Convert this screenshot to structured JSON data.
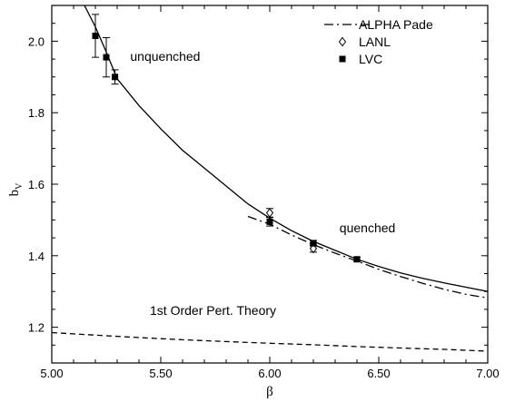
{
  "chart_data": {
    "type": "scatter",
    "title": "",
    "xlabel": "β",
    "ylabel": "b",
    "ylabel_subscript": "V",
    "xlim": [
      5.0,
      7.0
    ],
    "ylim": [
      1.1,
      2.1
    ],
    "grid": false,
    "legend_position": "top-right",
    "x_ticks": [
      5.0,
      5.5,
      6.0,
      6.5,
      7.0
    ],
    "x_tick_labels": [
      "5.00",
      "5.50",
      "6.00",
      "6.50",
      "7.00"
    ],
    "y_ticks": [
      1.2,
      1.4,
      1.6,
      1.8,
      2.0
    ],
    "y_tick_labels": [
      "1.2",
      "1.4",
      "1.6",
      "1.8",
      "2.0"
    ],
    "series": [
      {
        "name": "ALPHA Pade",
        "kind": "line",
        "style": "dashdot",
        "points": [
          [
            5.9,
            1.51
          ],
          [
            6.0,
            1.488
          ],
          [
            6.1,
            1.458
          ],
          [
            6.2,
            1.431
          ],
          [
            6.3,
            1.407
          ],
          [
            6.4,
            1.385
          ],
          [
            6.5,
            1.362
          ],
          [
            6.6,
            1.342
          ],
          [
            6.7,
            1.323
          ],
          [
            6.8,
            1.306
          ],
          [
            6.9,
            1.292
          ],
          [
            7.0,
            1.282
          ]
        ]
      },
      {
        "name": "LANL",
        "kind": "marker",
        "marker": "open-diamond",
        "points": [
          {
            "x": 6.0,
            "y": 1.52,
            "err": 0.012
          },
          {
            "x": 6.2,
            "y": 1.42,
            "err": 0.01
          }
        ]
      },
      {
        "name": "LVC",
        "kind": "marker",
        "marker": "filled-square",
        "points": [
          {
            "x": 5.2,
            "y": 2.015,
            "err": 0.06
          },
          {
            "x": 5.25,
            "y": 1.955,
            "err": 0.055
          },
          {
            "x": 5.29,
            "y": 1.9,
            "err": 0.02
          },
          {
            "x": 6.0,
            "y": 1.495,
            "err": 0.012
          },
          {
            "x": 6.2,
            "y": 1.435,
            "err": 0.008
          },
          {
            "x": 6.4,
            "y": 1.39,
            "err": 0.006
          }
        ]
      },
      {
        "kind": "line",
        "style": "solid",
        "points": [
          [
            5.15,
            2.1
          ],
          [
            5.2,
            2.04
          ],
          [
            5.25,
            1.97
          ],
          [
            5.3,
            1.895
          ],
          [
            5.4,
            1.82
          ],
          [
            5.5,
            1.755
          ],
          [
            5.6,
            1.695
          ],
          [
            5.7,
            1.645
          ],
          [
            5.8,
            1.595
          ],
          [
            5.9,
            1.545
          ],
          [
            6.0,
            1.505
          ],
          [
            6.1,
            1.47
          ],
          [
            6.2,
            1.44
          ],
          [
            6.3,
            1.415
          ],
          [
            6.4,
            1.39
          ],
          [
            6.5,
            1.37
          ],
          [
            6.6,
            1.352
          ],
          [
            6.7,
            1.337
          ],
          [
            6.8,
            1.324
          ],
          [
            6.9,
            1.312
          ],
          [
            7.0,
            1.3
          ]
        ]
      },
      {
        "kind": "line",
        "style": "dashed",
        "points": [
          [
            5.0,
            1.185
          ],
          [
            5.2,
            1.178
          ],
          [
            5.4,
            1.171
          ],
          [
            5.6,
            1.165
          ],
          [
            5.8,
            1.16
          ],
          [
            6.0,
            1.155
          ],
          [
            6.2,
            1.151
          ],
          [
            6.4,
            1.146
          ],
          [
            6.6,
            1.142
          ],
          [
            6.8,
            1.138
          ],
          [
            7.0,
            1.133
          ]
        ]
      }
    ],
    "annotations": [
      {
        "text": "unquenched",
        "x": 5.36,
        "y": 1.945
      },
      {
        "text": "quenched",
        "x": 6.32,
        "y": 1.465
      },
      {
        "text": "1st Order Pert. Theory",
        "x": 5.45,
        "y": 1.235
      }
    ]
  }
}
